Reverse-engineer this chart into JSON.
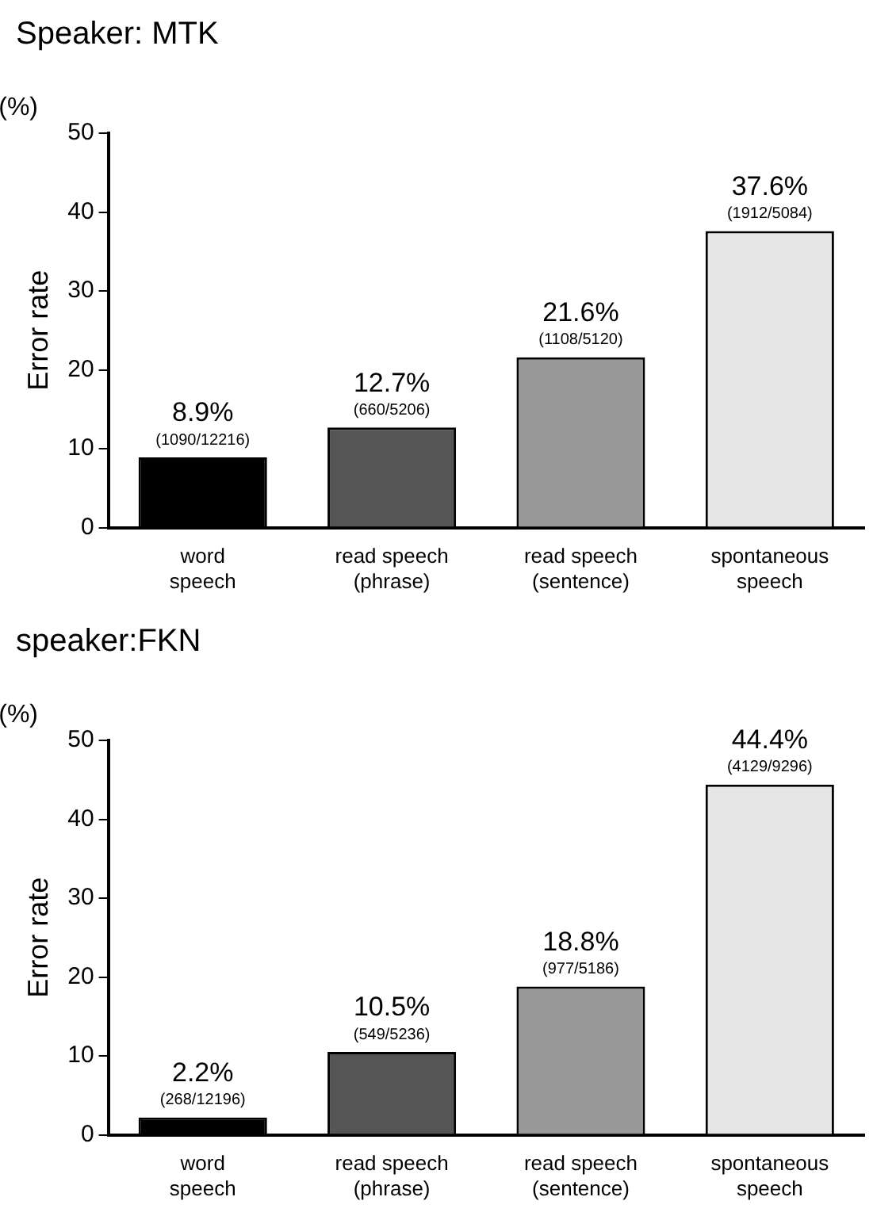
{
  "chart_data": [
    {
      "type": "bar",
      "title": "Speaker: MTK",
      "ylabel": "Error rate",
      "annotations": [
        "(%)"
      ],
      "categories": [
        "word\nspeech",
        "read speech\n(phrase)",
        "read speech\n(sentence)",
        "spontaneous\nspeech"
      ],
      "values": [
        8.9,
        12.7,
        21.6,
        37.6
      ],
      "colors": [
        "#000000",
        "#555555",
        "#999999",
        "#e6e6e6"
      ],
      "value_labels": [
        "8.9%\n(1090/12216)",
        "12.7%\n(660/5206)",
        "21.6%\n(1108/5120)",
        "37.6%\n(1912/5084)"
      ],
      "ylim": [
        0,
        50
      ],
      "yticks": [
        0,
        10,
        20,
        30,
        40,
        50
      ],
      "grid": false,
      "legend": false
    },
    {
      "type": "bar",
      "title": "speaker:FKN",
      "ylabel": "Error rate",
      "annotations": [
        "(%)"
      ],
      "categories": [
        "word\nspeech",
        "read speech\n(phrase)",
        "read speech\n(sentence)",
        "spontaneous\nspeech"
      ],
      "values": [
        2.2,
        10.5,
        18.8,
        44.4
      ],
      "colors": [
        "#000000",
        "#555555",
        "#999999",
        "#e6e6e6"
      ],
      "value_labels": [
        "2.2%\n(268/12196)",
        "10.5%\n(549/5236)",
        "18.8%\n(977/5186)",
        "44.4%\n(4129/9296)"
      ],
      "ylim": [
        0,
        50
      ],
      "yticks": [
        0,
        10,
        20,
        30,
        40,
        50
      ],
      "grid": false,
      "legend": false
    }
  ]
}
